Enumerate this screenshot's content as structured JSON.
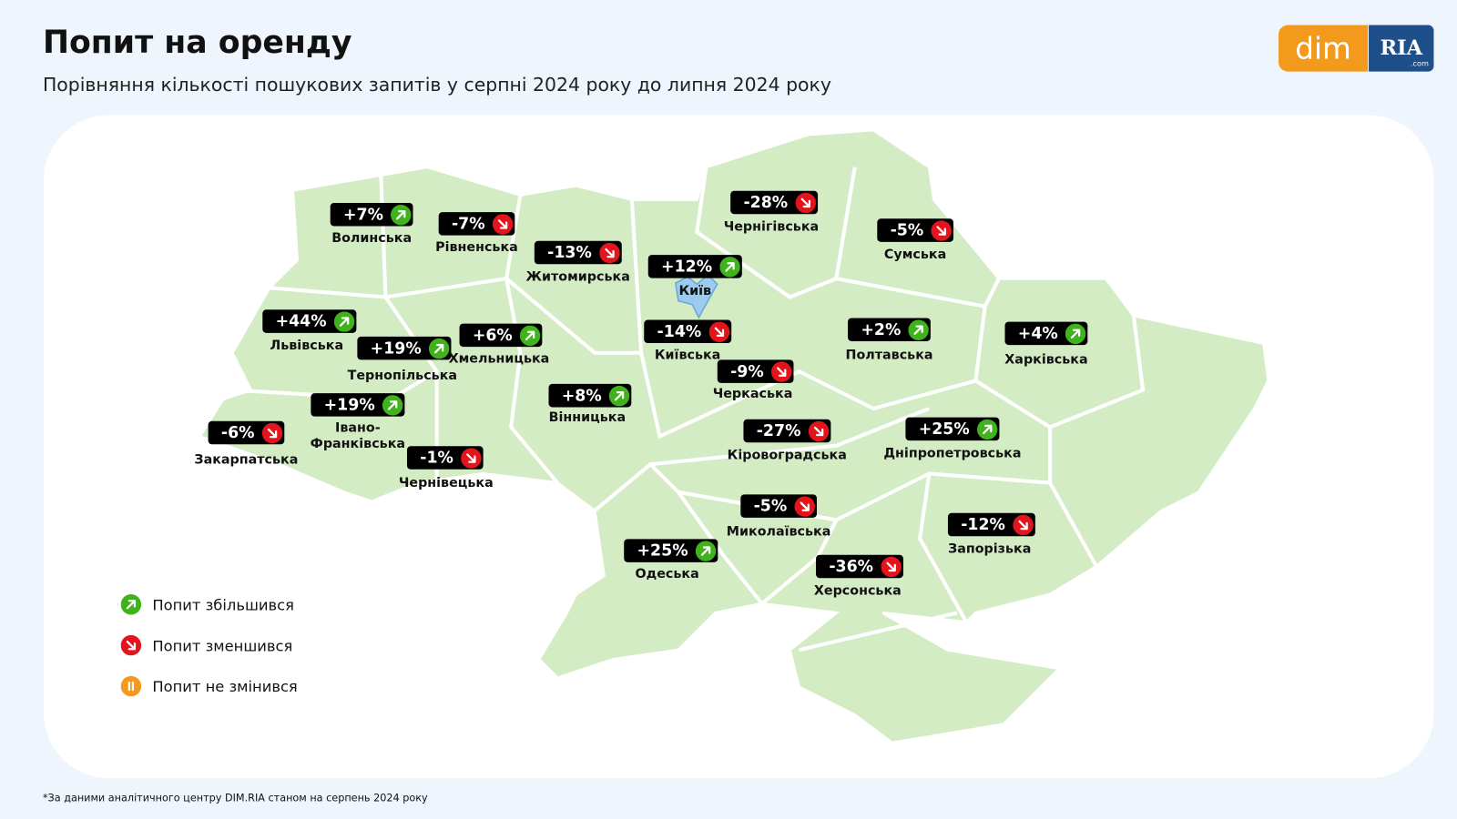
{
  "header": {
    "title": "Попит на оренду",
    "subtitle": "Порівняння кількості пошукових запитів у серпні 2024 року до липня 2024 року"
  },
  "logo": {
    "left": "dim",
    "right": "RIA",
    "suffix": ".com"
  },
  "regions": [
    {
      "name": "Волинська",
      "change": "+7%",
      "trend": "up"
    },
    {
      "name": "Рівненська",
      "change": "-7%",
      "trend": "down"
    },
    {
      "name": "Житомирська",
      "change": "-13%",
      "trend": "down"
    },
    {
      "name": "Чернігівська",
      "change": "-28%",
      "trend": "down"
    },
    {
      "name": "Сумська",
      "change": "-5%",
      "trend": "down"
    },
    {
      "name": "Київ",
      "change": "+12%",
      "trend": "up"
    },
    {
      "name": "Київська",
      "change": "-14%",
      "trend": "down"
    },
    {
      "name": "Львівська",
      "change": "+44%",
      "trend": "up"
    },
    {
      "name": "Тернопільська",
      "change": "+19%",
      "trend": "up"
    },
    {
      "name": "Хмельницька",
      "change": "+6%",
      "trend": "up"
    },
    {
      "name": "Полтавська",
      "change": "+2%",
      "trend": "up"
    },
    {
      "name": "Харківська",
      "change": "+4%",
      "trend": "up"
    },
    {
      "name": "Черкаська",
      "change": "-9%",
      "trend": "down"
    },
    {
      "name": "Вінницька",
      "change": "+8%",
      "trend": "up"
    },
    {
      "name": "Закарпатська",
      "change": "-6%",
      "trend": "down"
    },
    {
      "name": "Івано-Франківська",
      "change": "+19%",
      "trend": "up"
    },
    {
      "name": "Чернівецька",
      "change": "-1%",
      "trend": "down"
    },
    {
      "name": "Кіровоградська",
      "change": "-27%",
      "trend": "down"
    },
    {
      "name": "Дніпропетровська",
      "change": "+25%",
      "trend": "up"
    },
    {
      "name": "Миколаївська",
      "change": "-5%",
      "trend": "down"
    },
    {
      "name": "Запорізька",
      "change": "-12%",
      "trend": "down"
    },
    {
      "name": "Одеська",
      "change": "+25%",
      "trend": "up"
    },
    {
      "name": "Херсонська",
      "change": "-36%",
      "trend": "down"
    }
  ],
  "legend": [
    {
      "label": "Попит збільшився",
      "trend": "up"
    },
    {
      "label": "Попит зменшився",
      "trend": "down"
    },
    {
      "label": "Попит не змінився",
      "trend": "same"
    }
  ],
  "footnote": "*За даними аналітичного центру DIM.RIA станом на серпень 2024 року"
}
